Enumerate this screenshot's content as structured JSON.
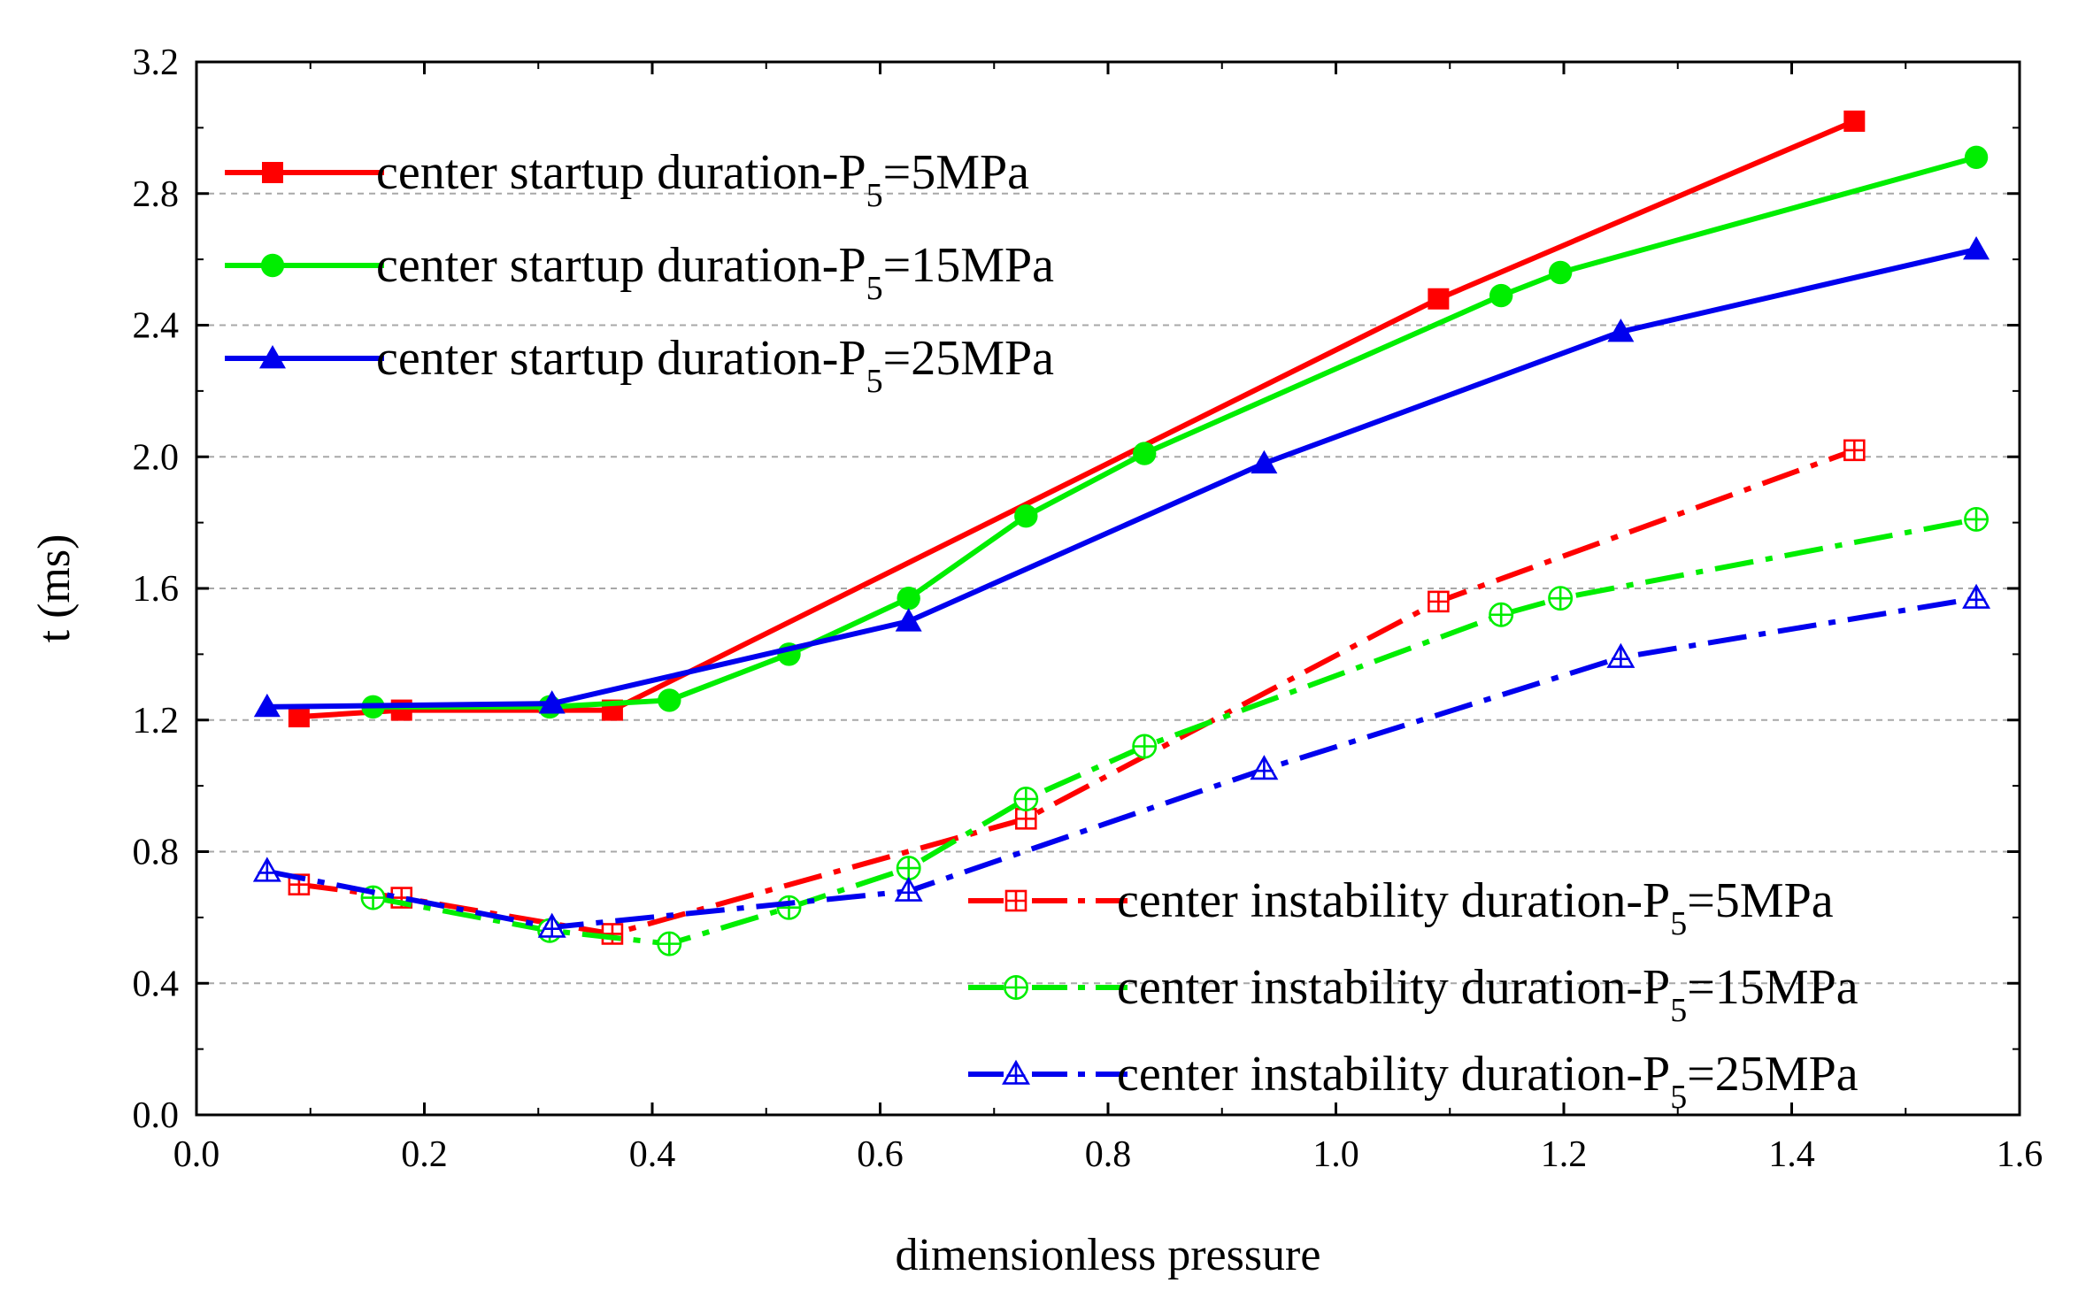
{
  "chart_data": {
    "type": "line",
    "title": "",
    "xlabel": "dimensionless pressure",
    "ylabel": "t (ms)",
    "xlim": [
      0.0,
      1.6
    ],
    "ylim": [
      0.0,
      3.2
    ],
    "x_ticks": [
      "0.0",
      "0.2",
      "0.4",
      "0.6",
      "0.8",
      "1.0",
      "1.2",
      "1.4",
      "1.6"
    ],
    "y_ticks": [
      "0.0",
      "0.4",
      "0.8",
      "1.2",
      "1.6",
      "2.0",
      "2.4",
      "2.8",
      "3.2"
    ],
    "gridlines": "horizontal dashed",
    "series": [
      {
        "name": "center startup duration-P5=5MPa",
        "legend_main": "center startup duration-P",
        "legend_sub": "5",
        "legend_tail": "=5MPa",
        "color": "#ff0000",
        "marker": "square-filled",
        "line_style": "solid",
        "x": [
          0.09,
          0.18,
          0.365,
          1.09,
          1.455
        ],
        "y": [
          1.21,
          1.23,
          1.23,
          2.48,
          3.02
        ]
      },
      {
        "name": "center startup duration-P5=15MPa",
        "legend_main": "center startup duration-P",
        "legend_sub": "5",
        "legend_tail": "=15MPa",
        "color": "#00ee00",
        "marker": "circle-filled",
        "line_style": "solid",
        "x": [
          0.155,
          0.31,
          0.415,
          0.52,
          0.625,
          0.728,
          0.832,
          1.145,
          1.197,
          1.562
        ],
        "y": [
          1.24,
          1.24,
          1.26,
          1.4,
          1.57,
          1.82,
          2.01,
          2.49,
          2.56,
          2.91
        ]
      },
      {
        "name": "center startup duration-P5=25MPa",
        "legend_main": "center startup duration-P",
        "legend_sub": "5",
        "legend_tail": "=25MPa",
        "color": "#0000ee",
        "marker": "triangle-filled",
        "line_style": "solid",
        "x": [
          0.062,
          0.312,
          0.625,
          0.937,
          1.25,
          1.562
        ],
        "y": [
          1.24,
          1.25,
          1.5,
          1.98,
          2.38,
          2.63
        ]
      },
      {
        "name": "center instability duration-P5=5MPa",
        "legend_main": "center instability duration-P",
        "legend_sub": "5",
        "legend_tail": "=5MPa",
        "color": "#ff0000",
        "marker": "square-open-plus",
        "line_style": "dash-dot",
        "x": [
          0.09,
          0.18,
          0.365,
          0.728,
          1.09,
          1.455
        ],
        "y": [
          0.7,
          0.66,
          0.55,
          0.9,
          1.56,
          2.02
        ]
      },
      {
        "name": "center instability duration-P5=15MPa",
        "legend_main": "center instability duration-P",
        "legend_sub": "5",
        "legend_tail": "=15MPa",
        "color": "#00ee00",
        "marker": "circle-open-plus",
        "line_style": "dash-dot",
        "x": [
          0.155,
          0.31,
          0.415,
          0.52,
          0.625,
          0.728,
          0.832,
          1.145,
          1.197,
          1.562
        ],
        "y": [
          0.66,
          0.56,
          0.52,
          0.63,
          0.75,
          0.96,
          1.12,
          1.52,
          1.57,
          1.81
        ]
      },
      {
        "name": "center instability duration-P5=25MPa",
        "legend_main": "center instability duration-P",
        "legend_sub": "5",
        "legend_tail": "=25MPa",
        "color": "#0000ee",
        "marker": "triangle-open-plus",
        "line_style": "dash-dot",
        "x": [
          0.062,
          0.312,
          0.625,
          0.937,
          1.25,
          1.562
        ],
        "y": [
          0.74,
          0.57,
          0.68,
          1.05,
          1.39,
          1.57
        ]
      }
    ],
    "legends": [
      {
        "placement": "top-left",
        "series": [
          0,
          1,
          2
        ]
      },
      {
        "placement": "bottom-right",
        "series": [
          3,
          4,
          5
        ]
      }
    ]
  }
}
